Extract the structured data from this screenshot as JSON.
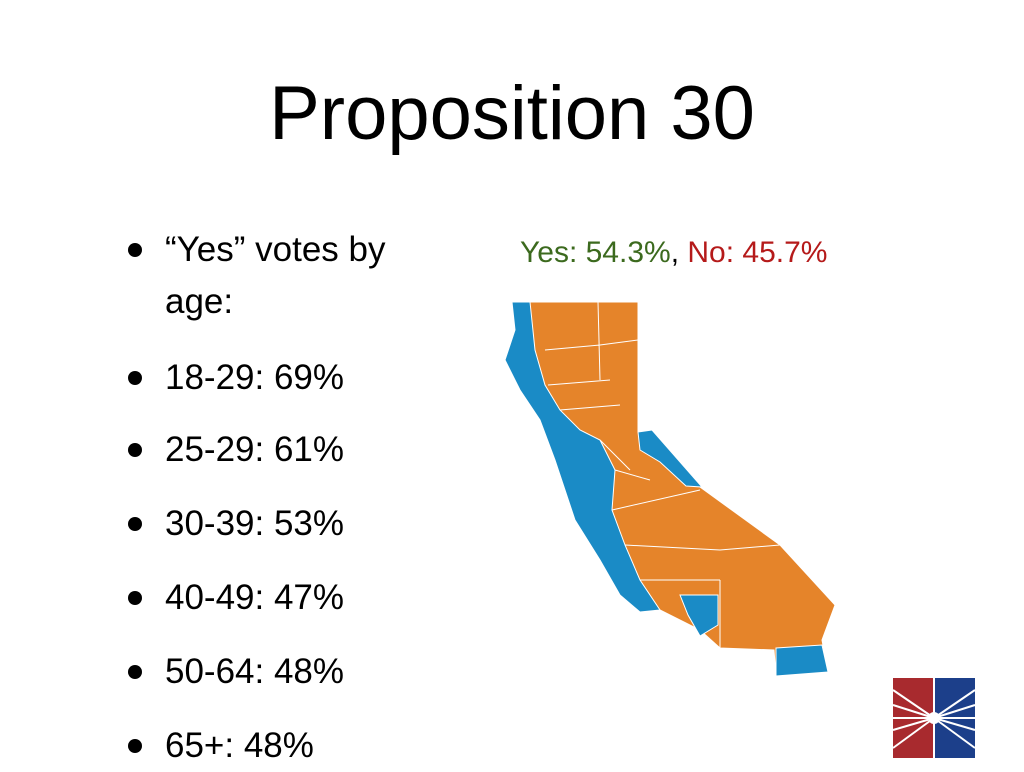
{
  "header": {
    "title": "Proposition 30"
  },
  "bullets": [
    "“Yes” votes by age:",
    "18-29: 69%",
    "25-29: 61%",
    "30-39: 53%",
    "40-49: 47%",
    "50-64: 48%",
    "65+: 48%"
  ],
  "map": {
    "caption": {
      "yes": "Yes: 54.3%",
      "separator": ",",
      "no": "No: 45.7%"
    }
  }
}
